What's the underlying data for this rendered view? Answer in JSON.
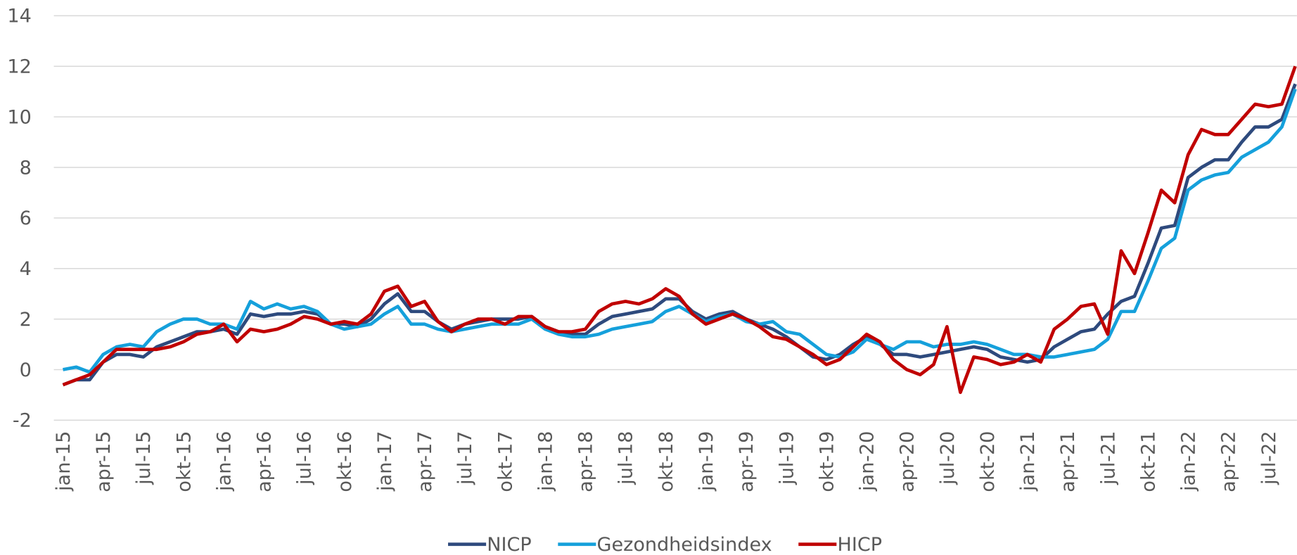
{
  "chart_data": {
    "type": "line",
    "categories": [
      "jan-15",
      null,
      null,
      "apr-15",
      null,
      null,
      "jul-15",
      null,
      null,
      "okt-15",
      null,
      null,
      "jan-16",
      null,
      null,
      "apr-16",
      null,
      null,
      "jul-16",
      null,
      null,
      "okt-16",
      null,
      null,
      "jan-17",
      null,
      null,
      "apr-17",
      null,
      null,
      "jul-17",
      null,
      null,
      "okt-17",
      null,
      null,
      "jan-18",
      null,
      null,
      "apr-18",
      null,
      null,
      "jul-18",
      null,
      null,
      "okt-18",
      null,
      null,
      "jan-19",
      null,
      null,
      "apr-19",
      null,
      null,
      "jul-19",
      null,
      null,
      "okt-19",
      null,
      null,
      "jan-20",
      null,
      null,
      "apr-20",
      null,
      null,
      "jul-20",
      null,
      null,
      "okt-20",
      null,
      null,
      "jan-21",
      null,
      null,
      "apr-21",
      null,
      null,
      "jul-21",
      null,
      null,
      "okt-21",
      null,
      null,
      "jan-22",
      null,
      null,
      "apr-22",
      null,
      null,
      "jul-22",
      null,
      null
    ],
    "series": [
      {
        "name": "NICP",
        "color": "#2e4a7d",
        "values": [
          -0.6,
          -0.4,
          -0.4,
          0.3,
          0.6,
          0.6,
          0.5,
          0.9,
          1.1,
          1.3,
          1.5,
          1.5,
          1.6,
          1.4,
          2.2,
          2.1,
          2.2,
          2.2,
          2.3,
          2.2,
          1.8,
          1.8,
          1.7,
          2.0,
          2.6,
          3.0,
          2.3,
          2.3,
          1.9,
          1.6,
          1.8,
          1.9,
          2.0,
          2.0,
          2.0,
          2.1,
          1.7,
          1.5,
          1.4,
          1.4,
          1.8,
          2.1,
          2.2,
          2.3,
          2.4,
          2.8,
          2.8,
          2.3,
          2.0,
          2.2,
          2.3,
          2.0,
          1.8,
          1.6,
          1.3,
          0.9,
          0.5,
          0.4,
          0.6,
          1.0,
          1.3,
          1.0,
          0.6,
          0.6,
          0.5,
          0.6,
          0.7,
          0.8,
          0.9,
          0.8,
          0.5,
          0.4,
          0.3,
          0.4,
          0.9,
          1.2,
          1.5,
          1.6,
          2.2,
          2.7,
          2.9,
          4.2,
          5.6,
          5.7,
          7.6,
          8.0,
          8.3,
          8.3,
          9.0,
          9.6,
          9.6,
          9.9,
          11.3
        ]
      },
      {
        "name": "Gezondheidsindex",
        "color": "#15a0db",
        "values": [
          0.0,
          0.1,
          -0.1,
          0.6,
          0.9,
          1.0,
          0.9,
          1.5,
          1.8,
          2.0,
          2.0,
          1.8,
          1.8,
          1.6,
          2.7,
          2.4,
          2.6,
          2.4,
          2.5,
          2.3,
          1.8,
          1.6,
          1.7,
          1.8,
          2.2,
          2.5,
          1.8,
          1.8,
          1.6,
          1.5,
          1.6,
          1.7,
          1.8,
          1.8,
          1.8,
          2.0,
          1.6,
          1.4,
          1.3,
          1.3,
          1.4,
          1.6,
          1.7,
          1.8,
          1.9,
          2.3,
          2.5,
          2.2,
          1.9,
          2.1,
          2.2,
          1.9,
          1.8,
          1.9,
          1.5,
          1.4,
          1.0,
          0.6,
          0.5,
          0.7,
          1.2,
          1.0,
          0.8,
          1.1,
          1.1,
          0.9,
          1.0,
          1.0,
          1.1,
          1.0,
          0.8,
          0.6,
          0.6,
          0.5,
          0.5,
          0.6,
          0.7,
          0.8,
          1.2,
          2.3,
          2.3,
          3.5,
          4.8,
          5.2,
          7.1,
          7.5,
          7.7,
          7.8,
          8.4,
          8.7,
          9.0,
          9.6,
          11.1
        ]
      },
      {
        "name": "HICP",
        "color": "#c00000",
        "values": [
          -0.6,
          -0.4,
          -0.2,
          0.3,
          0.8,
          0.8,
          0.8,
          0.8,
          0.9,
          1.1,
          1.4,
          1.5,
          1.8,
          1.1,
          1.6,
          1.5,
          1.6,
          1.8,
          2.1,
          2.0,
          1.8,
          1.9,
          1.8,
          2.2,
          3.1,
          3.3,
          2.5,
          2.7,
          1.9,
          1.5,
          1.8,
          2.0,
          2.0,
          1.8,
          2.1,
          2.1,
          1.7,
          1.5,
          1.5,
          1.6,
          2.3,
          2.6,
          2.7,
          2.6,
          2.8,
          3.2,
          2.9,
          2.2,
          1.8,
          2.0,
          2.2,
          2.0,
          1.7,
          1.3,
          1.2,
          0.9,
          0.6,
          0.2,
          0.4,
          0.9,
          1.4,
          1.1,
          0.4,
          0.0,
          -0.2,
          0.2,
          1.7,
          -0.9,
          0.5,
          0.4,
          0.2,
          0.3,
          0.6,
          0.3,
          1.6,
          2.0,
          2.5,
          2.6,
          1.4,
          4.7,
          3.8,
          5.4,
          7.1,
          6.6,
          8.5,
          9.5,
          9.3,
          9.3,
          9.9,
          10.5,
          10.4,
          10.5,
          12.0
        ]
      }
    ],
    "ylim": [
      -2,
      14
    ],
    "yticks": [
      -2,
      0,
      2,
      4,
      6,
      8,
      10,
      12,
      14
    ],
    "grid": true,
    "legend": "bottom"
  }
}
